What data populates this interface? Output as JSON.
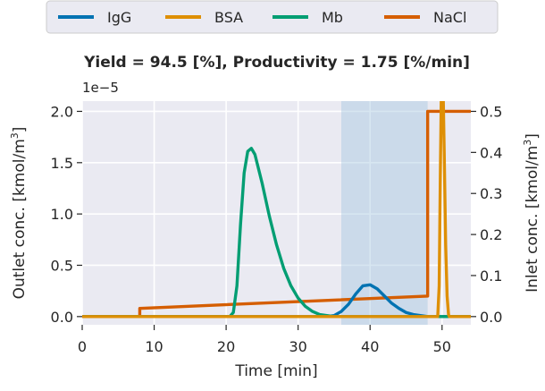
{
  "chart_data": {
    "type": "line",
    "title": "Yield = 94.5 [%], Productivity = 1.75 [%/min]",
    "xlabel": "Time [min]",
    "ylabel_left": "Outlet conc. [kmol/m",
    "ylabel_right": "Inlet conc. [kmol/m",
    "ylabel_sup": "3",
    "ylabel_close": "]",
    "offset_label": "1e−5",
    "xlim": [
      0,
      54
    ],
    "ylim_left": [
      -0.08,
      2.1
    ],
    "ylim_right": [
      -0.02,
      0.525
    ],
    "x_ticks": [
      0,
      10,
      20,
      30,
      40,
      50
    ],
    "x_tick_labels": [
      "0",
      "10",
      "20",
      "30",
      "40",
      "50"
    ],
    "y_left_ticks": [
      0.0,
      0.5,
      1.0,
      1.5,
      2.0
    ],
    "y_left_tick_labels": [
      "0.0",
      "0.5",
      "1.0",
      "1.5",
      "2.0"
    ],
    "y_right_ticks": [
      0.0,
      0.1,
      0.2,
      0.3,
      0.4,
      0.5
    ],
    "y_right_tick_labels": [
      "0.0",
      "0.1",
      "0.2",
      "0.3",
      "0.4",
      "0.5"
    ],
    "shaded_region": [
      36,
      48
    ],
    "grid": true,
    "legend_position": "top-center outside",
    "series": [
      {
        "name": "IgG",
        "color": "#0173b2",
        "axis": "left",
        "x": [
          0,
          34,
          35,
          36,
          37,
          38,
          39,
          40,
          41,
          42,
          43,
          44,
          45,
          46,
          47,
          48,
          54
        ],
        "y": [
          0,
          0,
          0.01,
          0.05,
          0.12,
          0.22,
          0.3,
          0.31,
          0.27,
          0.2,
          0.13,
          0.08,
          0.04,
          0.02,
          0.01,
          0.0,
          0.0
        ]
      },
      {
        "name": "BSA",
        "color": "#de8f05",
        "axis": "left",
        "x": [
          0,
          49.4,
          49.6,
          49.75,
          49.9,
          50.0,
          50.15,
          50.3,
          50.5,
          50.7,
          50.9,
          51.0,
          54
        ],
        "y": [
          0,
          0,
          0.3,
          1.3,
          2.2,
          2.2,
          2.2,
          1.6,
          0.7,
          0.2,
          0.02,
          0,
          0
        ]
      },
      {
        "name": "Mb",
        "color": "#029e73",
        "axis": "left",
        "x": [
          0,
          20.5,
          21,
          21.5,
          22,
          22.5,
          23,
          23.5,
          24,
          25,
          26,
          27,
          28,
          29,
          30,
          31,
          32,
          33,
          34,
          35,
          54
        ],
        "y": [
          0,
          0,
          0.04,
          0.3,
          0.9,
          1.4,
          1.61,
          1.64,
          1.58,
          1.3,
          0.98,
          0.7,
          0.47,
          0.3,
          0.18,
          0.1,
          0.05,
          0.02,
          0.01,
          0,
          0
        ]
      },
      {
        "name": "NaCl",
        "color": "#d55e00",
        "axis": "right",
        "x": [
          0,
          8,
          8,
          48,
          48,
          54
        ],
        "y": [
          0,
          0,
          0.02,
          0.05,
          0.5,
          0.5
        ]
      }
    ]
  }
}
